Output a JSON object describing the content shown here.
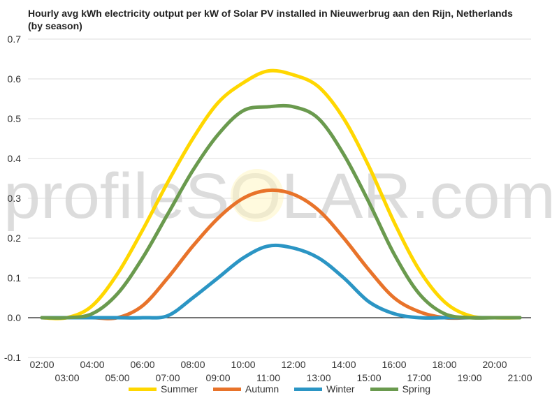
{
  "chart_data": {
    "type": "line",
    "title": "Hourly avg kWh electricity output per kW of Solar PV installed in Nieuwerbrug aan den Rijn, Netherlands (by season)",
    "watermark": "profileSOLAR.com",
    "xlabel": "",
    "ylabel": "",
    "ylim": [
      -0.1,
      0.7
    ],
    "yticks": [
      "-0.1",
      "0.0",
      "0.1",
      "0.2",
      "0.3",
      "0.4",
      "0.5",
      "0.6",
      "0.7"
    ],
    "grid": true,
    "legend_position": "bottom",
    "x": [
      "02:00",
      "03:00",
      "04:00",
      "05:00",
      "06:00",
      "07:00",
      "08:00",
      "09:00",
      "10:00",
      "11:00",
      "12:00",
      "13:00",
      "14:00",
      "15:00",
      "16:00",
      "17:00",
      "18:00",
      "19:00",
      "20:00",
      "21:00"
    ],
    "series": [
      {
        "name": "Summer",
        "color": "#ffd700",
        "values": [
          0.0,
          0.0,
          0.03,
          0.11,
          0.22,
          0.34,
          0.45,
          0.54,
          0.59,
          0.62,
          0.61,
          0.58,
          0.5,
          0.38,
          0.24,
          0.12,
          0.04,
          0.005,
          0.0,
          0.0
        ]
      },
      {
        "name": "Autumn",
        "color": "#e8732a",
        "values": [
          0.0,
          0.0,
          0.0,
          0.0,
          0.03,
          0.1,
          0.18,
          0.25,
          0.3,
          0.32,
          0.31,
          0.27,
          0.2,
          0.12,
          0.05,
          0.015,
          0.0,
          0.0,
          0.0,
          0.0
        ]
      },
      {
        "name": "Winter",
        "color": "#2b95c4",
        "values": [
          0.0,
          0.0,
          0.0,
          0.0,
          0.0,
          0.005,
          0.05,
          0.1,
          0.15,
          0.18,
          0.175,
          0.15,
          0.1,
          0.04,
          0.01,
          0.0,
          0.0,
          0.0,
          0.0,
          0.0
        ]
      },
      {
        "name": "Spring",
        "color": "#6a9a4e",
        "values": [
          0.0,
          0.0,
          0.01,
          0.06,
          0.15,
          0.26,
          0.37,
          0.46,
          0.52,
          0.53,
          0.53,
          0.5,
          0.41,
          0.29,
          0.16,
          0.06,
          0.01,
          0.0,
          0.0,
          0.0
        ]
      }
    ]
  }
}
